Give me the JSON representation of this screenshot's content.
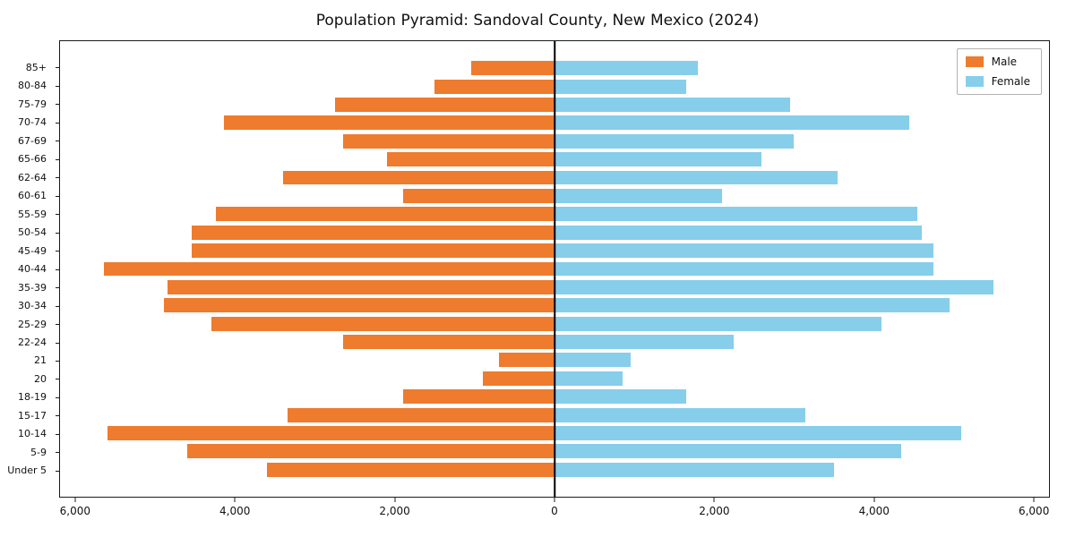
{
  "colors": {
    "male": "#ee7b2e",
    "female": "#87ceeb",
    "axis": "#1a1a1a"
  },
  "chart_data": {
    "type": "bar",
    "subtype": "population-pyramid",
    "orientation": "horizontal",
    "title": "Population Pyramid: Sandoval County, New Mexico (2024)",
    "legend_position": "upper right",
    "grid": false,
    "xlim": [
      -6200,
      6200
    ],
    "categories_top_to_bottom": [
      "85+",
      "80-84",
      "75-79",
      "70-74",
      "67-69",
      "65-66",
      "62-64",
      "60-61",
      "55-59",
      "50-54",
      "45-49",
      "40-44",
      "35-39",
      "30-34",
      "25-29",
      "22-24",
      "21",
      "20",
      "18-19",
      "15-17",
      "10-14",
      "5-9",
      "Under 5"
    ],
    "series": [
      {
        "name": "Male",
        "side": "left",
        "color": "#ee7b2e",
        "values": [
          1050,
          1500,
          2750,
          4150,
          2650,
          2100,
          3400,
          1900,
          4250,
          4550,
          4550,
          5650,
          4850,
          4900,
          4300,
          2650,
          700,
          900,
          1900,
          3350,
          5600,
          4600,
          3600
        ]
      },
      {
        "name": "Female",
        "side": "right",
        "color": "#87ceeb",
        "values": [
          1800,
          1650,
          2950,
          4450,
          3000,
          2600,
          3550,
          2100,
          4550,
          4600,
          4750,
          4750,
          5500,
          4950,
          4100,
          2250,
          950,
          850,
          1650,
          3150,
          5100,
          4350,
          3500
        ]
      }
    ],
    "x_ticks": [
      {
        "value": -6000,
        "label": "6,000"
      },
      {
        "value": -4000,
        "label": "4,000"
      },
      {
        "value": -2000,
        "label": "2,000"
      },
      {
        "value": 0,
        "label": "0"
      },
      {
        "value": 2000,
        "label": "2,000"
      },
      {
        "value": 4000,
        "label": "4,000"
      },
      {
        "value": 6000,
        "label": "6,000"
      }
    ]
  }
}
